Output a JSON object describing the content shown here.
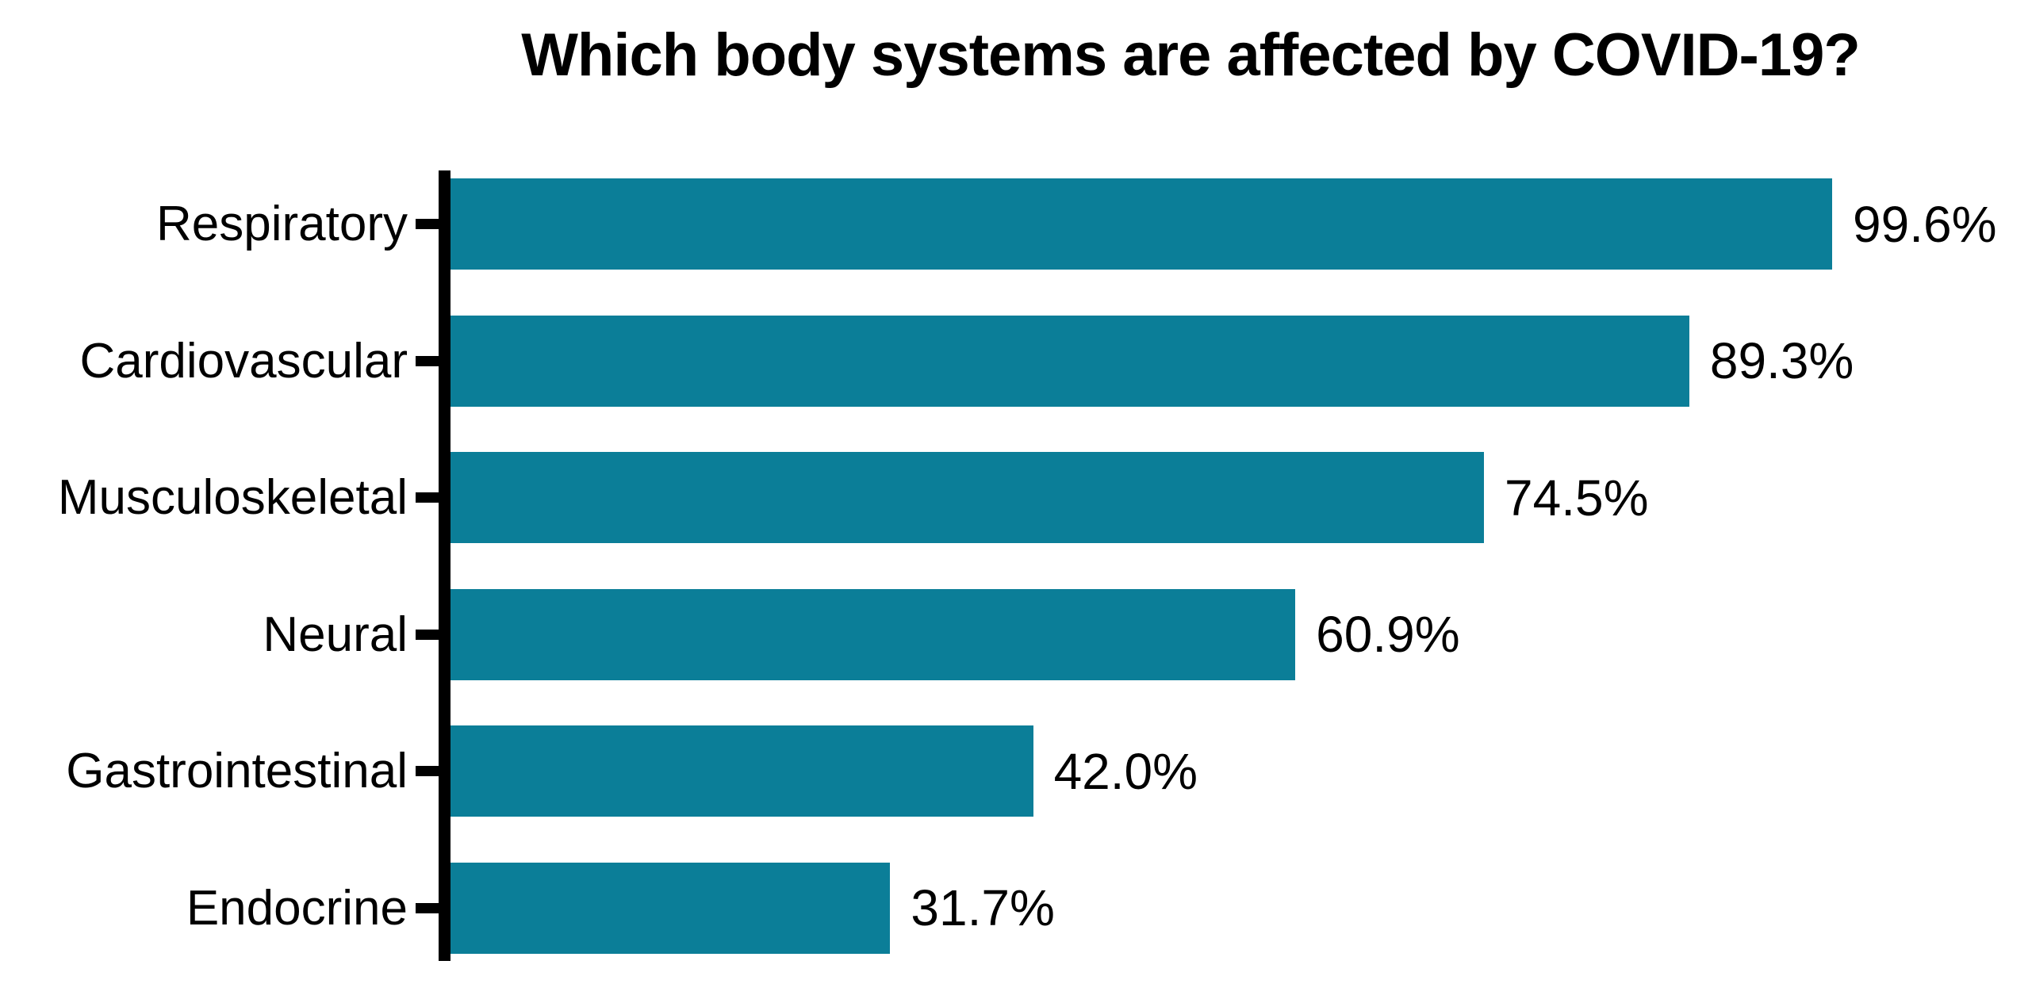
{
  "page": {
    "background": "#ffffff"
  },
  "chart_data": {
    "type": "bar",
    "orientation": "horizontal",
    "title": "Which body systems are affected by COVID-19?",
    "categories": [
      "Respiratory",
      "Cardiovascular",
      "Musculoskeletal",
      "Neural",
      "Gastrointestinal",
      "Endocrine"
    ],
    "values": [
      99.6,
      89.3,
      74.5,
      60.9,
      42.0,
      31.7
    ],
    "value_labels": [
      "99.6%",
      "89.3%",
      "74.5%",
      "60.9%",
      "42.0%",
      "31.7%"
    ],
    "xlabel": "",
    "ylabel": "",
    "xlim": [
      0,
      114
    ],
    "grid": false,
    "legend": false,
    "bar_color": "#0b7e98",
    "axis_color": "#000000",
    "text_color": "#000000"
  }
}
